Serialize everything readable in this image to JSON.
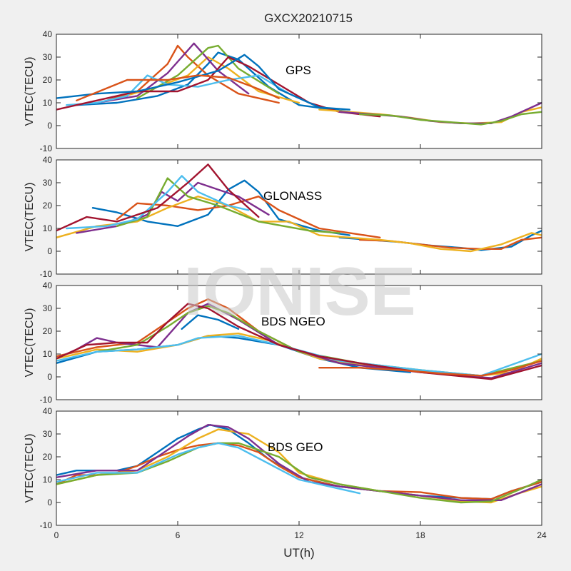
{
  "figure": {
    "title": "GXCX20210715",
    "watermark": "IONISE",
    "xlabel": "UT(h)",
    "ylabel": "VTEC(TECU)"
  },
  "colors": {
    "series": [
      "#0072BD",
      "#D95319",
      "#EDB120",
      "#7E2F8E",
      "#77AC30",
      "#4DBEEE",
      "#A2142F"
    ],
    "background": "#f0f0f0",
    "axes_background": "#ffffff",
    "watermark": "#c8c8c8"
  },
  "chart_data": [
    {
      "type": "line",
      "panel": "GPS",
      "label": "GPS",
      "xlabel": "",
      "ylabel": "VTEC(TECU)",
      "xlim": [
        0,
        24
      ],
      "ylim": [
        -10,
        40
      ],
      "xticks": [
        0,
        6,
        12,
        18,
        24
      ],
      "yticks": [
        -10,
        0,
        10,
        20,
        30,
        40
      ],
      "xticklabels_visible": false,
      "grid": false,
      "series": [
        {
          "x": [
            1.0,
            3.0,
            5.0,
            6.5,
            7.5,
            8.0,
            9.0,
            10.5,
            12.0,
            14.5
          ],
          "y": [
            9.0,
            10.0,
            13.0,
            18.0,
            27.0,
            32.0,
            29.0,
            17.0,
            9.0,
            6.0
          ]
        },
        {
          "x": [
            2.5,
            4.0,
            5.5,
            6.0,
            6.5,
            7.5,
            9.0,
            11.0
          ],
          "y": [
            11.0,
            15.0,
            27.0,
            35.0,
            30.0,
            22.0,
            14.0,
            10.0
          ]
        },
        {
          "x": [
            3.0,
            5.0,
            6.5,
            7.5,
            8.5,
            10.0,
            12.0
          ],
          "y": [
            12.0,
            17.0,
            22.0,
            30.0,
            25.0,
            15.0,
            10.0
          ]
        },
        {
          "x": [
            2.0,
            4.0,
            5.5,
            6.8,
            8.0,
            9.5
          ],
          "y": [
            10.0,
            13.0,
            23.0,
            36.0,
            24.0,
            14.0
          ]
        },
        {
          "x": [
            4.0,
            6.0,
            7.5,
            8.0,
            9.0,
            11.0
          ],
          "y": [
            12.0,
            22.0,
            34.0,
            35.0,
            25.0,
            14.0
          ]
        },
        {
          "x": [
            0.5,
            2.0,
            3.5,
            4.5,
            5.5,
            7.0,
            8.5,
            10.0,
            11.5
          ],
          "y": [
            9.0,
            10.0,
            13.0,
            22.0,
            18.0,
            17.0,
            20.0,
            22.0,
            14.0
          ]
        },
        {
          "x": [
            0.0,
            2.0,
            4.0,
            6.0,
            7.5,
            8.5,
            9.5,
            11.0,
            12.5,
            14.0,
            16.0
          ],
          "y": [
            7.0,
            11.0,
            15.0,
            15.0,
            20.0,
            30.0,
            26.0,
            18.0,
            10.0,
            6.0,
            4.0
          ]
        },
        {
          "x": [
            0.0,
            2.0,
            4.0,
            6.0,
            8.0,
            9.3,
            10.0,
            11.0,
            13.0,
            14.5
          ],
          "y": [
            12.0,
            14.0,
            15.0,
            19.0,
            24.0,
            31.0,
            26.0,
            16.0,
            8.0,
            7.0
          ]
        },
        {
          "x": [
            1.0,
            3.5,
            5.5,
            7.0,
            8.5,
            10.0,
            11.0
          ],
          "y": [
            11.0,
            20.0,
            20.0,
            22.0,
            21.0,
            16.0,
            12.0
          ]
        },
        {
          "x": [
            13.0,
            14.5,
            16.0,
            17.5,
            19.0,
            20.5,
            22.0,
            23.0,
            24.0
          ],
          "y": [
            7.0,
            6.0,
            5.0,
            3.5,
            1.5,
            1.0,
            1.5,
            6.0,
            8.0
          ]
        },
        {
          "x": [
            14.0,
            15.5,
            17.0,
            18.5,
            20.0,
            21.5,
            22.5,
            23.5,
            24.0
          ],
          "y": [
            6.0,
            5.0,
            4.0,
            2.0,
            1.0,
            1.0,
            4.0,
            8.0,
            10.0
          ]
        },
        {
          "x": [
            15.0,
            16.5,
            18.0,
            19.5,
            21.0,
            22.0,
            23.0,
            24.0
          ],
          "y": [
            5.0,
            4.5,
            2.5,
            1.5,
            0.5,
            2.0,
            5.0,
            6.0
          ]
        }
      ]
    },
    {
      "type": "line",
      "panel": "GLONASS",
      "label": "GLONASS",
      "xlabel": "",
      "ylabel": "VTEC(TECU)",
      "xlim": [
        0,
        24
      ],
      "ylim": [
        -10,
        40
      ],
      "xticks": [
        0,
        6,
        12,
        18,
        24
      ],
      "yticks": [
        -10,
        0,
        10,
        20,
        30,
        40
      ],
      "xticklabels_visible": false,
      "grid": false,
      "series": [
        {
          "x": [
            1.8,
            3.0,
            4.5,
            6.0,
            7.5,
            8.5,
            9.3,
            10.0,
            11.0,
            13.0,
            14.5
          ],
          "y": [
            19.0,
            17.0,
            13.0,
            11.0,
            16.0,
            27.0,
            31.0,
            26.0,
            14.0,
            9.0,
            7.0
          ]
        },
        {
          "x": [
            3.0,
            4.0,
            5.5,
            7.0,
            8.5,
            10.0,
            11.0,
            13.0,
            14.5,
            16.0
          ],
          "y": [
            14.0,
            21.0,
            20.0,
            18.0,
            20.0,
            24.0,
            18.0,
            10.0,
            8.0,
            6.0
          ]
        },
        {
          "x": [
            0.0,
            2.0,
            4.0,
            5.5,
            7.0,
            8.5,
            10.0,
            11.5,
            13.0
          ],
          "y": [
            6.0,
            11.0,
            13.0,
            19.0,
            24.0,
            20.0,
            13.0,
            13.0,
            7.0
          ]
        },
        {
          "x": [
            1.0,
            3.0,
            4.5,
            5.2,
            6.0,
            7.0,
            9.0,
            10.5
          ],
          "y": [
            8.0,
            11.0,
            16.0,
            26.0,
            22.0,
            30.0,
            24.0,
            16.0
          ]
        },
        {
          "x": [
            3.0,
            4.5,
            5.5,
            6.5,
            8.0,
            10.0,
            12.5,
            14.0
          ],
          "y": [
            11.0,
            15.0,
            32.0,
            24.0,
            20.0,
            13.0,
            9.0,
            8.0
          ]
        },
        {
          "x": [
            0.5,
            2.5,
            4.0,
            5.5,
            6.2,
            7.0,
            8.5,
            9.5
          ],
          "y": [
            10.0,
            11.0,
            14.0,
            26.0,
            33.0,
            26.0,
            20.0,
            18.0
          ]
        },
        {
          "x": [
            0.0,
            1.5,
            3.0,
            5.0,
            6.5,
            7.5,
            8.5,
            10.0
          ],
          "y": [
            9.0,
            15.0,
            13.0,
            19.0,
            30.0,
            38.0,
            27.0,
            15.0
          ]
        },
        {
          "x": [
            14.0,
            15.5,
            17.0,
            18.5,
            20.0,
            21.0,
            22.5,
            23.5,
            24.0
          ],
          "y": [
            6.0,
            5.0,
            4.0,
            2.5,
            1.5,
            0.5,
            2.0,
            7.0,
            9.0
          ]
        },
        {
          "x": [
            15.0,
            16.5,
            18.0,
            19.5,
            21.0,
            22.0,
            23.0,
            24.0
          ],
          "y": [
            5.0,
            4.5,
            3.0,
            1.5,
            1.0,
            1.0,
            5.0,
            6.0
          ]
        },
        {
          "x": [
            13.0,
            14.5,
            16.0,
            17.5,
            19.0,
            20.5,
            22.0,
            23.5,
            24.0
          ],
          "y": [
            7.0,
            6.0,
            5.0,
            3.5,
            1.0,
            0.0,
            3.0,
            8.0,
            7.0
          ]
        }
      ]
    },
    {
      "type": "line",
      "panel": "BDS NGEO",
      "label": "BDS NGEO",
      "xlabel": "",
      "ylabel": "VTEC(TECU)",
      "xlim": [
        0,
        24
      ],
      "ylim": [
        -10,
        40
      ],
      "xticks": [
        0,
        6,
        12,
        18,
        24
      ],
      "yticks": [
        -10,
        0,
        10,
        20,
        30,
        40
      ],
      "xticklabels_visible": false,
      "grid": false,
      "series": [
        {
          "x": [
            0.0,
            2.0,
            4.0,
            6.0,
            7.5,
            9.0,
            11.0,
            13.0,
            15.0,
            17.5
          ],
          "y": [
            6.0,
            11.0,
            12.0,
            14.0,
            18.0,
            17.0,
            14.0,
            8.0,
            4.0,
            2.0
          ]
        },
        {
          "x": [
            0.0,
            2.0,
            4.0,
            5.5,
            6.5,
            7.5,
            8.5,
            10.0,
            12.0,
            14.0,
            16.0
          ],
          "y": [
            9.0,
            13.0,
            15.0,
            24.0,
            30.0,
            34.0,
            30.0,
            20.0,
            11.0,
            6.0,
            4.0
          ]
        },
        {
          "x": [
            0.0,
            2.0,
            4.0,
            6.0,
            7.5,
            9.0,
            10.5,
            13.0,
            16.0,
            19.0,
            21.0,
            22.5,
            24.0
          ],
          "y": [
            8.0,
            12.0,
            11.0,
            14.0,
            18.0,
            19.0,
            16.0,
            8.0,
            4.0,
            2.0,
            0.5,
            2.0,
            8.0
          ]
        },
        {
          "x": [
            0.0,
            1.0,
            2.0,
            3.0,
            5.0,
            6.5,
            7.5,
            9.0,
            11.0,
            14.0,
            18.0,
            21.5,
            24.0
          ],
          "y": [
            8.0,
            12.0,
            17.0,
            15.0,
            13.0,
            28.0,
            32.0,
            25.0,
            14.0,
            6.0,
            2.0,
            -0.5,
            6.0
          ]
        },
        {
          "x": [
            2.0,
            4.0,
            5.5,
            6.5,
            7.5,
            8.5,
            10.0,
            12.0,
            15.0,
            18.0,
            21.0,
            24.0
          ],
          "y": [
            11.0,
            14.0,
            22.0,
            28.0,
            31.0,
            28.0,
            20.0,
            11.0,
            6.0,
            3.0,
            0.5,
            7.0
          ]
        },
        {
          "x": [
            0.0,
            2.0,
            4.0,
            6.0,
            7.0,
            9.0,
            11.0,
            14.0,
            18.0,
            21.0,
            24.0
          ],
          "y": [
            7.0,
            11.0,
            12.0,
            14.0,
            17.0,
            18.0,
            14.0,
            7.0,
            3.0,
            0.5,
            10.0
          ]
        },
        {
          "x": [
            0.0,
            1.5,
            3.0,
            4.5,
            5.5,
            6.5,
            7.5,
            9.0,
            11.0,
            13.0,
            15.0,
            18.0,
            21.5,
            24.0
          ],
          "y": [
            8.0,
            14.0,
            15.0,
            15.0,
            24.0,
            32.0,
            30.0,
            22.0,
            14.0,
            9.0,
            6.0,
            2.0,
            -1.0,
            5.0
          ]
        },
        {
          "x": [
            6.2,
            7.0,
            8.0,
            9.0
          ],
          "y": [
            21.0,
            27.0,
            25.0,
            21.0
          ]
        },
        {
          "x": [
            13.0,
            15.0,
            17.0,
            19.0,
            21.0,
            22.5,
            24.0
          ],
          "y": [
            4.0,
            4.0,
            3.0,
            1.5,
            0.5,
            3.0,
            7.0
          ]
        }
      ]
    },
    {
      "type": "line",
      "panel": "BDS GEO",
      "label": "BDS GEO",
      "xlabel": "UT(h)",
      "ylabel": "VTEC(TECU)",
      "xlim": [
        0,
        24
      ],
      "ylim": [
        -10,
        40
      ],
      "xticks": [
        0,
        6,
        12,
        18,
        24
      ],
      "yticks": [
        -10,
        0,
        10,
        20,
        30,
        40
      ],
      "xticklabels_visible": true,
      "grid": false,
      "series": [
        {
          "x": [
            0.0,
            1.0,
            2.0,
            3.0,
            4.0,
            5.0,
            6.0,
            7.0,
            7.6,
            8.5,
            9.5,
            10.5,
            12.0,
            14.0,
            16.0,
            18.0,
            20.0,
            21.5,
            22.5,
            24.0
          ],
          "y": [
            12.0,
            14.0,
            14.0,
            14.0,
            16.0,
            22.0,
            28.0,
            32.0,
            34.0,
            32.0,
            26.0,
            19.0,
            11.0,
            7.0,
            5.0,
            3.0,
            2.0,
            1.5,
            5.0,
            9.0
          ]
        },
        {
          "x": [
            0.0,
            1.0,
            2.0,
            3.0,
            4.0,
            5.0,
            6.0,
            7.0,
            8.0,
            9.0,
            10.0,
            11.0,
            12.0,
            14.0,
            16.0,
            18.0,
            20.0,
            21.5,
            22.5,
            24.0
          ],
          "y": [
            8.0,
            12.0,
            12.0,
            13.0,
            16.0,
            20.0,
            23.0,
            25.0,
            26.0,
            25.0,
            22.0,
            16.0,
            11.0,
            7.0,
            5.0,
            4.5,
            2.0,
            1.5,
            5.0,
            9.0
          ]
        },
        {
          "x": [
            0.0,
            2.0,
            4.0,
            5.5,
            7.0,
            8.0,
            9.5,
            11.0,
            12.0,
            14.0,
            16.0,
            18.0,
            20.0,
            21.5,
            22.5,
            24.0
          ],
          "y": [
            8.0,
            12.0,
            14.0,
            20.0,
            28.0,
            32.0,
            30.0,
            22.0,
            13.0,
            8.0,
            5.0,
            3.0,
            0.5,
            0.0,
            3.0,
            7.0
          ]
        },
        {
          "x": [
            0.0,
            2.0,
            4.0,
            5.5,
            6.5,
            7.5,
            8.5,
            9.5,
            11.0,
            12.5,
            14.0,
            16.0,
            18.0,
            20.0,
            22.0,
            24.0
          ],
          "y": [
            11.0,
            14.0,
            14.0,
            23.0,
            29.0,
            34.0,
            33.0,
            28.0,
            17.0,
            9.0,
            7.0,
            5.0,
            3.0,
            1.0,
            1.0,
            8.0
          ]
        },
        {
          "x": [
            0.0,
            2.0,
            4.0,
            5.5,
            7.0,
            8.0,
            9.0,
            11.0,
            12.5,
            14.0,
            16.0,
            18.0,
            20.0,
            21.5,
            23.0,
            24.0
          ],
          "y": [
            8.0,
            12.0,
            13.0,
            18.0,
            24.0,
            26.0,
            26.0,
            20.0,
            11.0,
            8.0,
            5.0,
            2.0,
            0.0,
            0.5,
            6.0,
            10.0
          ]
        },
        {
          "x": [
            0.0,
            2.0,
            4.0,
            6.0,
            7.0,
            8.0,
            9.0,
            10.5,
            12.0,
            14.0,
            15.0
          ],
          "y": [
            9.0,
            13.0,
            13.0,
            21.0,
            24.0,
            26.0,
            24.0,
            17.0,
            10.0,
            6.0,
            4.0
          ]
        }
      ]
    }
  ]
}
